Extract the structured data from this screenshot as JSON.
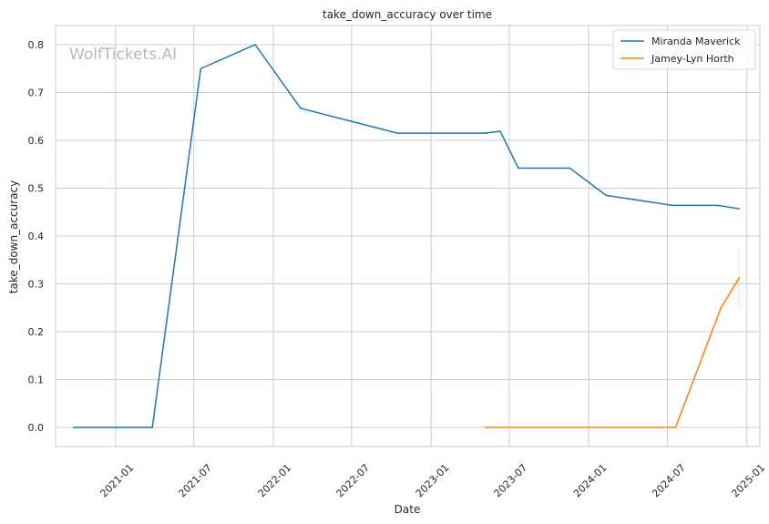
{
  "chart_data": {
    "type": "line",
    "title": "take_down_accuracy over time",
    "xlabel": "Date",
    "ylabel": "take_down_accuracy",
    "watermark": "WolfTickets.AI",
    "x_ticks": [
      "2021-01",
      "2021-07",
      "2022-01",
      "2022-07",
      "2023-01",
      "2023-07",
      "2024-01",
      "2024-07",
      "2025-01"
    ],
    "y_ticks": [
      "0.0",
      "0.1",
      "0.2",
      "0.3",
      "0.4",
      "0.5",
      "0.6",
      "0.7",
      "0.8"
    ],
    "xlim": [
      "2020-08-15",
      "2025-01-31"
    ],
    "ylim": [
      -0.04,
      0.84
    ],
    "grid": true,
    "legend_position": "top-right",
    "series": [
      {
        "name": "Miranda Maverick",
        "color": "#1f77b4",
        "points": [
          {
            "x": "2020-09-26",
            "y": 0.0
          },
          {
            "x": "2021-03-27",
            "y": 0.0
          },
          {
            "x": "2021-07-17",
            "y": 0.75
          },
          {
            "x": "2021-11-20",
            "y": 0.8
          },
          {
            "x": "2022-03-05",
            "y": 0.667
          },
          {
            "x": "2022-10-15",
            "y": 0.615
          },
          {
            "x": "2023-05-06",
            "y": 0.615
          },
          {
            "x": "2023-06-10",
            "y": 0.619
          },
          {
            "x": "2023-07-22",
            "y": 0.542
          },
          {
            "x": "2023-11-18",
            "y": 0.542
          },
          {
            "x": "2024-02-10",
            "y": 0.485
          },
          {
            "x": "2024-07-13",
            "y": 0.464
          },
          {
            "x": "2024-10-26",
            "y": 0.464
          },
          {
            "x": "2024-12-14",
            "y": 0.457
          }
        ]
      },
      {
        "name": "Jamey-Lyn Horth",
        "color": "#ff7f0e",
        "points": [
          {
            "x": "2023-05-06",
            "y": 0.0
          },
          {
            "x": "2024-07-20",
            "y": 0.0
          },
          {
            "x": "2024-11-02",
            "y": 0.25
          },
          {
            "x": "2024-12-14",
            "y": 0.3125
          }
        ],
        "error_bar": {
          "x": "2024-12-14",
          "low": 0.25,
          "high": 0.375
        }
      }
    ]
  }
}
